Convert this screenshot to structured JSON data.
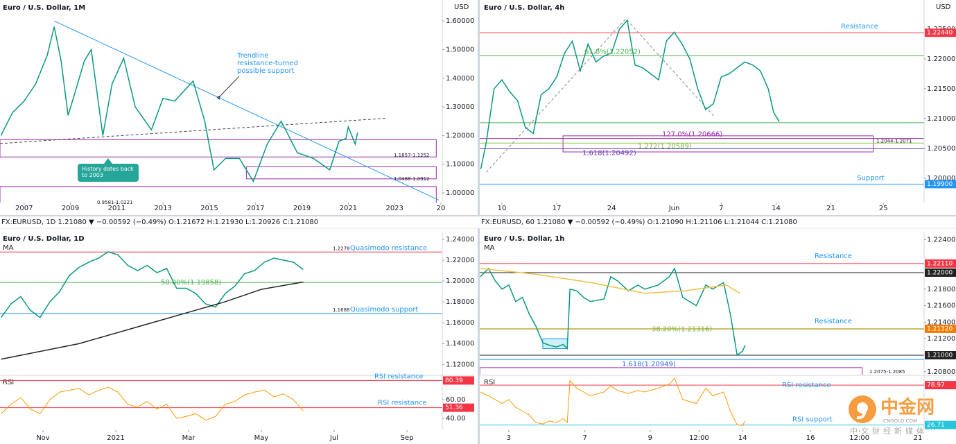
{
  "chart_data": [
    {
      "type": "line",
      "title": "Euro / U.S. Dollar, 1M",
      "unit": "USD",
      "xlim": [
        2005.96,
        2025.06
      ],
      "xticks": [
        2007,
        2009,
        2011,
        2013,
        2015,
        2017,
        2019,
        2021,
        2023,
        {
          "value": 2025,
          "label": "20"
        }
      ],
      "ylim": [
        0.966,
        1.673
      ],
      "yticks": [
        {
          "value": 1.0,
          "label": "1.00000"
        },
        {
          "value": 1.1,
          "label": "1.10000"
        },
        {
          "value": 1.2,
          "label": "1.20000"
        },
        {
          "value": 1.3,
          "label": "1.30000"
        },
        {
          "value": 1.4,
          "label": "1.40000"
        },
        {
          "value": 1.5,
          "label": "1.50000"
        },
        {
          "value": 1.6,
          "label": "1.60000"
        }
      ],
      "series": [
        {
          "color": "#089981",
          "x": [
            2006.0,
            2006.5,
            2007.0,
            2007.5,
            2008.0,
            2008.3,
            2008.6,
            2008.9,
            2009.2,
            2009.6,
            2009.9,
            2010.4,
            2010.8,
            2011.3,
            2011.8,
            2012.5,
            2013.0,
            2013.5,
            2014.3,
            2014.8,
            2015.2,
            2015.7,
            2016.3,
            2016.9,
            2017.5,
            2018.1,
            2018.8,
            2019.5,
            2020.2,
            2020.6,
            2020.9,
            2021.0,
            2021.3,
            2021.4
          ],
          "values": [
            1.2,
            1.28,
            1.32,
            1.38,
            1.48,
            1.58,
            1.46,
            1.27,
            1.35,
            1.46,
            1.5,
            1.2,
            1.38,
            1.47,
            1.3,
            1.22,
            1.33,
            1.32,
            1.39,
            1.25,
            1.08,
            1.12,
            1.12,
            1.04,
            1.17,
            1.25,
            1.14,
            1.12,
            1.08,
            1.18,
            1.19,
            1.23,
            1.17,
            1.21
          ]
        }
      ],
      "trendlines": [
        {
          "color": "#2196f3",
          "x": [
            2008.3,
            2024.9
          ],
          "values": [
            1.6,
            0.975
          ]
        },
        {
          "color": "#444444",
          "dashed": true,
          "x": [
            2005.96,
            2022.6
          ],
          "values": [
            1.172,
            1.26
          ]
        }
      ],
      "zones": [
        {
          "low": 1.1252,
          "high": 1.1857,
          "x0": 2005.96,
          "x1": 2024.8,
          "color": "#9c27b0",
          "label": "1.1857-1.1252"
        },
        {
          "low": 1.0488,
          "high": 1.0912,
          "x0": 2016.6,
          "x1": 2024.8,
          "color": "#9c27b0",
          "label": "1.0488-1.0912"
        },
        {
          "low": 0.9581,
          "high": 1.0221,
          "x0": 2005.96,
          "x1": 2024.8,
          "color": "#9c27b0",
          "label": "0.9581-1.0221"
        }
      ],
      "notes": [
        "Trendline resistance-turned possible support",
        "History dates back to 2003"
      ]
    },
    {
      "type": "line",
      "title": "Euro / U.S. Dollar, 4h",
      "unit": "USD",
      "xlim": [
        7.17,
        63.9
      ],
      "xticks": [
        10,
        17,
        24,
        {
          "value": 32,
          "label": "Jun"
        },
        {
          "value": 38,
          "label": "7"
        },
        {
          "value": 45,
          "label": "14"
        },
        {
          "value": 52,
          "label": "21"
        },
        {
          "value": 58.7,
          "label": "25"
        }
      ],
      "ylim": [
        1.1959,
        1.2299
      ],
      "yticks": [
        {
          "value": 1.2,
          "label": "1.20000"
        },
        {
          "value": 1.205,
          "label": "1.20500"
        },
        {
          "value": 1.21,
          "label": "1.21000"
        },
        {
          "value": 1.215,
          "label": "1.21500"
        },
        {
          "value": 1.22,
          "label": "1.22000"
        },
        {
          "value": 1.225,
          "label": "1.22500"
        }
      ],
      "series": [
        {
          "color": "#089981",
          "x": [
            7.3,
            8,
            9,
            10,
            11,
            12,
            13,
            14,
            15,
            16,
            17,
            18,
            19,
            20,
            21,
            22,
            23,
            24,
            25,
            26,
            27,
            28,
            29,
            30,
            31,
            32,
            33,
            34,
            35,
            36,
            37,
            38,
            39,
            40,
            41,
            42,
            43,
            44,
            44.7,
            45.4
          ],
          "values": [
            1.2015,
            1.206,
            1.215,
            1.2165,
            1.2145,
            1.213,
            1.2085,
            1.2075,
            1.214,
            1.215,
            1.217,
            1.221,
            1.223,
            1.218,
            1.2225,
            1.2195,
            1.2205,
            1.221,
            1.225,
            1.2265,
            1.219,
            1.2185,
            1.2175,
            1.2165,
            1.223,
            1.2245,
            1.2225,
            1.22,
            1.215,
            1.2115,
            1.2125,
            1.217,
            1.2175,
            1.2185,
            1.2195,
            1.219,
            1.218,
            1.215,
            1.211,
            1.2095
          ]
        }
      ],
      "trendlines": [
        {
          "color": "#888888",
          "dashed": true,
          "x": [
            8,
            26
          ],
          "values": [
            1.201,
            1.227
          ]
        },
        {
          "color": "#888888",
          "dashed": true,
          "x": [
            26,
            37
          ],
          "values": [
            1.2265,
            1.2105
          ]
        }
      ],
      "levels": [
        {
          "value": 1.2244,
          "color": "#f23645",
          "label": "Resistance"
        },
        {
          "value": 1.22052,
          "color": "#4caf50",
          "label": "61.8%(1.22052)",
          "label_color": "#4caf50"
        },
        {
          "value": 1.2093,
          "color": "#4caf50"
        },
        {
          "value": 1.20666,
          "color": "#9c27b0",
          "label": "127.0%(1.20666)",
          "label_color": "#9c27b0"
        },
        {
          "value": 1.20589,
          "color": "#8bc34a",
          "label": "1.272(1.20589)",
          "label_color": "#7cb342"
        },
        {
          "value": 1.20492,
          "color": "#673ab7",
          "label": "1.618(1.20492)",
          "label_color": "#673ab7"
        },
        {
          "value": 1.199,
          "color": "#2196f3",
          "label": "Support"
        }
      ],
      "zones": [
        {
          "low": 1.2044,
          "high": 1.2071,
          "x0": 17.8,
          "x1": 57.4,
          "color": "#9c27b0",
          "label": "1.2044-1.2071"
        }
      ],
      "axis_tags": [
        {
          "value": 1.2244,
          "label": "1.22440",
          "color": "#f23645"
        },
        {
          "value": 1.199,
          "label": "1.19900",
          "color": "#2196f3"
        }
      ]
    },
    {
      "type": "line",
      "title": "Euro / U.S. Dollar, 1D",
      "header": "FX:EURUSD, 1D  1.21080 ▼ −0.00592 (−0.49%)  O:1.21672  H:1.21930  L:1.20926  C:1.21080",
      "xlim": [
        9.82,
        21.97
      ],
      "xticks": [
        {
          "value": 11,
          "label": "Nov"
        },
        {
          "value": 13,
          "label": "2021"
        },
        {
          "value": 15,
          "label": "Mar"
        },
        {
          "value": 17,
          "label": "May"
        },
        {
          "value": 19,
          "label": "Jul"
        },
        {
          "value": 21,
          "label": "Sep"
        }
      ],
      "ylim": [
        1.1102,
        1.2466
      ],
      "yticks": [
        {
          "value": 1.12,
          "label": "1.12000"
        },
        {
          "value": 1.14,
          "label": "1.14000"
        },
        {
          "value": 1.16,
          "label": "1.16000"
        },
        {
          "value": 1.18,
          "label": "1.18000"
        },
        {
          "value": 1.2,
          "label": "1.20000"
        },
        {
          "value": 1.22,
          "label": "1.22000"
        },
        {
          "value": 1.24,
          "label": "1.24000"
        }
      ],
      "series": [
        {
          "color": "#089981",
          "x": [
            9.85,
            10.12,
            10.39,
            10.65,
            10.92,
            11.19,
            11.46,
            11.72,
            11.99,
            12.26,
            12.53,
            12.79,
            13.06,
            13.33,
            13.6,
            13.86,
            14.13,
            14.4,
            14.67,
            14.94,
            15.2,
            15.47,
            15.74,
            16.01,
            16.27,
            16.54,
            16.81,
            17.08,
            17.35,
            17.61,
            17.88,
            18.15
          ],
          "values": [
            1.165,
            1.178,
            1.185,
            1.172,
            1.165,
            1.18,
            1.19,
            1.205,
            1.213,
            1.218,
            1.222,
            1.228,
            1.225,
            1.215,
            1.21,
            1.215,
            1.208,
            1.212,
            1.193,
            1.193,
            1.188,
            1.178,
            1.175,
            1.188,
            1.195,
            1.207,
            1.21,
            1.218,
            1.222,
            1.22,
            1.218,
            1.211
          ]
        },
        {
          "name": "MA",
          "color": "#222222",
          "x": [
            9.85,
            12,
            14,
            16,
            17,
            18.15
          ],
          "values": [
            1.125,
            1.14,
            1.16,
            1.18,
            1.192,
            1.199
          ]
        }
      ],
      "levels": [
        {
          "value": 1.2278,
          "color": "#f23645",
          "label": "Quasimodo resistance",
          "value_label": "1.2278"
        },
        {
          "value": 1.19858,
          "color": "#4caf50",
          "label": "50.00%(1.19858)",
          "label_color": "#4caf50"
        },
        {
          "value": 1.1688,
          "color": "#2196f3",
          "label": "Quasimodo support",
          "value_label": "1.1688"
        }
      ],
      "rsi": {
        "title": "RSI",
        "ylim": [
          27.4,
          84.4
        ],
        "yticks": [
          {
            "value": 60,
            "label": "60.00"
          },
          {
            "value": 40,
            "label": "40.00"
          }
        ],
        "color": "#ff9800",
        "values": [
          45,
          55,
          62,
          50,
          45,
          60,
          68,
          70,
          72,
          65,
          70,
          73,
          68,
          55,
          52,
          58,
          50,
          55,
          40,
          42,
          45,
          38,
          42,
          55,
          58,
          65,
          68,
          70,
          63,
          66,
          60,
          48
        ],
        "levels": [
          {
            "value": 80.39,
            "color": "#f23645",
            "label": "RSI resistance",
            "tag": "80.39"
          },
          {
            "value": 51.36,
            "color": "#f23645",
            "label": "RSI resistance",
            "tag": "51.36"
          }
        ]
      }
    },
    {
      "type": "line",
      "title": "Euro / U.S. Dollar, 1h",
      "header": "FX:EURUSD, 60  1.21080 ▼ −0.00592 (−0.49%)  O:1.21090  H:1.21106  L:1.21044  C:1.21080",
      "xlim": [
        -21.4,
        305.6
      ],
      "xticks": [
        {
          "value": 0,
          "label": "3"
        },
        {
          "value": 56,
          "label": "7"
        },
        {
          "value": 104,
          "label": "9"
        },
        {
          "value": 140,
          "label": "12:00"
        },
        {
          "value": 172,
          "label": "14"
        },
        {
          "value": 222,
          "label": "16"
        },
        {
          "value": 258,
          "label": "12:00"
        },
        {
          "value": 301,
          "label": "21"
        }
      ],
      "ylim": [
        1.20765,
        1.22487
      ],
      "yticks": [
        {
          "value": 1.208,
          "label": "1.20800"
        },
        {
          "value": 1.212,
          "label": "1.21200"
        },
        {
          "value": 1.214,
          "label": "1.21400"
        },
        {
          "value": 1.216,
          "label": "1.21600"
        },
        {
          "value": 1.218,
          "label": "1.21800"
        },
        {
          "value": 1.224,
          "label": "1.22400"
        }
      ],
      "series": [
        {
          "color": "#089981",
          "x": [
            -21,
            -15,
            -10,
            -5,
            0,
            5,
            10,
            15,
            20,
            25,
            30,
            35,
            40,
            43,
            45,
            50,
            55,
            60,
            70,
            75,
            80,
            88,
            95,
            100,
            110,
            118,
            122,
            128,
            138,
            145,
            150,
            158,
            163,
            168,
            172,
            174
          ],
          "values": [
            1.2195,
            1.2205,
            1.219,
            1.218,
            1.2185,
            1.2165,
            1.217,
            1.215,
            1.2135,
            1.2115,
            1.2112,
            1.211,
            1.2113,
            1.2108,
            1.218,
            1.2178,
            1.217,
            1.2165,
            1.2168,
            1.2195,
            1.219,
            1.2178,
            1.2185,
            1.218,
            1.2185,
            1.2195,
            1.2205,
            1.217,
            1.216,
            1.2185,
            1.218,
            1.2188,
            1.215,
            1.21,
            1.2105,
            1.2112
          ]
        },
        {
          "name": "MA",
          "color": "#f0c040",
          "x": [
            -21,
            20,
            60,
            100,
            130,
            160,
            170
          ],
          "values": [
            1.2205,
            1.2198,
            1.2188,
            1.2175,
            1.2178,
            1.2185,
            1.2175
          ]
        }
      ],
      "levels": [
        {
          "value": 1.2211,
          "color": "#f23645",
          "label": "Resistance"
        },
        {
          "value": 1.22,
          "color": "#222222"
        },
        {
          "value": 1.2132,
          "color": "#f57c00",
          "label": "Resistance"
        },
        {
          "value": 1.21316,
          "color": "#8bc34a",
          "label": "38.20%(1.21316)",
          "label_color": "#7cb342"
        },
        {
          "value": 1.21,
          "color": "#222222"
        },
        {
          "value": 1.20949,
          "color": "#2196f3",
          "label": "1.618(1.20949)",
          "label_color": "#2962ff"
        }
      ],
      "zones": [
        {
          "low": 1.2075,
          "high": 1.2085,
          "x0": -21.4,
          "x1": 260,
          "color": "#9c27b0",
          "label": "1.2075-1.2085"
        },
        {
          "low": 1.2108,
          "high": 1.212,
          "x0": 25,
          "x1": 43,
          "color": "#2196f3",
          "fill": "#b2ebf2"
        }
      ],
      "axis_tags": [
        {
          "value": 1.2211,
          "label": "1.22110",
          "color": "#f23645"
        },
        {
          "value": 1.22,
          "label": "1.22000",
          "color": "#222222"
        },
        {
          "value": 1.2132,
          "label": "1.21320",
          "color": "#f57c00"
        },
        {
          "value": 1.21,
          "label": "1.21000",
          "color": "#222222"
        }
      ],
      "rsi": {
        "title": "RSI",
        "ylim": [
          20,
          90
        ],
        "color": "#ff9800",
        "values": [
          70,
          65,
          60,
          55,
          60,
          50,
          45,
          40,
          30,
          28,
          32,
          30,
          35,
          30,
          85,
          75,
          70,
          65,
          70,
          78,
          72,
          68,
          72,
          70,
          75,
          80,
          88,
          60,
          55,
          75,
          65,
          70,
          45,
          27,
          26,
          32
        ],
        "levels": [
          {
            "value": 78.97,
            "color": "#f23645",
            "label": "RSI resistance",
            "tag": "78.97"
          },
          {
            "value": 26.71,
            "color": "#26c6da",
            "label": "RSI support",
            "tag": "26.71"
          }
        ]
      }
    }
  ],
  "watermark": {
    "mark": "中金网",
    "site": "CNGOLD.COM",
    "tagline": "中文财经新媒体"
  }
}
